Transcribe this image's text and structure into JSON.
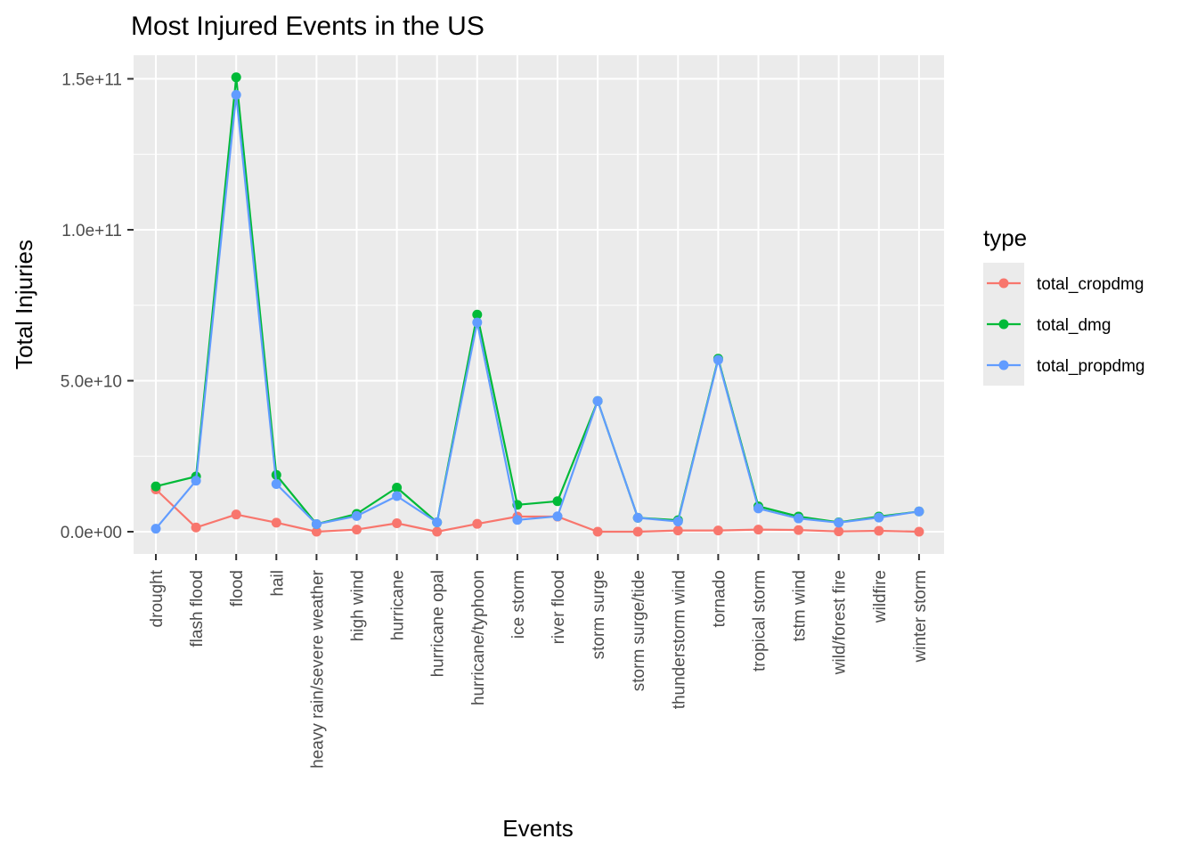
{
  "chart_data": {
    "type": "line",
    "title": "Most Injured Events in the US",
    "xlabel": "Events",
    "ylabel": "Total Injuries",
    "categories": [
      "drought",
      "flash flood",
      "flood",
      "hail",
      "heavy rain/severe weather",
      "high wind",
      "hurricane",
      "hurricane opal",
      "hurricane/typhoon",
      "ice storm",
      "river flood",
      "storm surge",
      "storm surge/tide",
      "thunderstorm wind",
      "tornado",
      "tropical storm",
      "tstm wind",
      "wild/forest fire",
      "wildfire",
      "winter storm"
    ],
    "yticks": [
      0,
      50000000000,
      100000000000,
      150000000000
    ],
    "ytick_labels": [
      "0.0e+00",
      "5.0e+10",
      "1.0e+11",
      "1.5e+11"
    ],
    "ylim": [
      -7500000000,
      158000000000
    ],
    "grid": true,
    "legend": {
      "title": "type",
      "position": "right"
    },
    "series": [
      {
        "name": "total_cropdmg",
        "color": "#F8766D",
        "values": [
          14000000000.0,
          1400000000.0,
          5700000000.0,
          3000000000.0,
          0,
          700000000.0,
          2800000000.0,
          0,
          2600000000.0,
          5000000000.0,
          5000000000.0,
          0,
          0,
          400000000.0,
          400000000.0,
          700000000.0,
          550000000.0,
          100000000.0,
          300000000.0,
          0
        ]
      },
      {
        "name": "total_dmg",
        "color": "#00BA38",
        "values": [
          15000000000.0,
          18300000000.0,
          150500000000.0,
          18800000000.0,
          2500000000.0,
          5900000000.0,
          14600000000.0,
          3100000000.0,
          71900000000.0,
          8900000000.0,
          10100000000.0,
          43300000000.0,
          4600000000.0,
          3800000000.0,
          57300000000.0,
          8400000000.0,
          5000000000.0,
          3100000000.0,
          5000000000.0,
          6700000000.0
        ]
      },
      {
        "name": "total_propdmg",
        "color": "#619CFF",
        "values": [
          1000000000.0,
          16900000000.0,
          144700000000.0,
          15800000000.0,
          2500000000.0,
          5200000000.0,
          11800000000.0,
          3100000000.0,
          69300000000.0,
          3900000000.0,
          5100000000.0,
          43300000000.0,
          4600000000.0,
          3400000000.0,
          56900000000.0,
          7700000000.0,
          4400000000.0,
          3000000000.0,
          4700000000.0,
          6700000000.0
        ]
      }
    ]
  }
}
